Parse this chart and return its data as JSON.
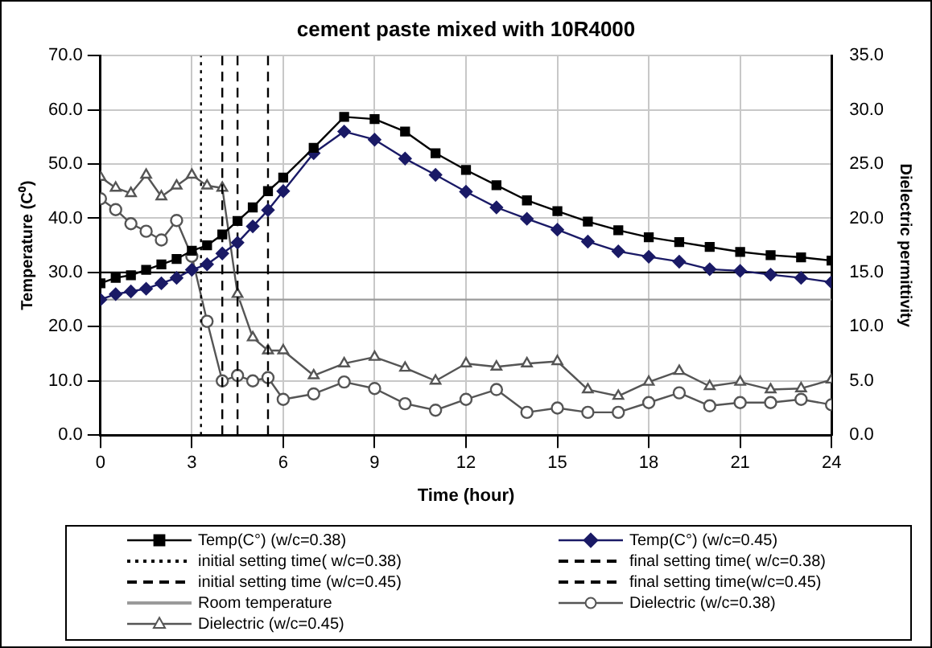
{
  "chart_data": {
    "type": "line",
    "title": "cement paste mixed with 10R4000",
    "xlabel": "Time (hour)",
    "ylabel": "Temperature (C⁰)",
    "y2label": "Dielectric permittivity",
    "xlim": [
      0,
      24
    ],
    "xticks": [
      0,
      3,
      6,
      9,
      12,
      15,
      18,
      21,
      24
    ],
    "ylim": [
      0,
      70
    ],
    "yticks": [
      {
        "value": 0,
        "label": "0.0"
      },
      {
        "value": 10,
        "label": "10.0"
      },
      {
        "value": 20,
        "label": "20.0"
      },
      {
        "value": 30,
        "label": "30.0"
      },
      {
        "value": 40,
        "label": "40.0"
      },
      {
        "value": 50,
        "label": "50.0"
      },
      {
        "value": 60,
        "label": "60.0"
      },
      {
        "value": 70,
        "label": "70.0"
      }
    ],
    "y2lim": [
      0,
      35
    ],
    "y2ticks": [
      {
        "value": 0,
        "label": "0.0"
      },
      {
        "value": 5,
        "label": "5.0"
      },
      {
        "value": 10,
        "label": "10.0"
      },
      {
        "value": 15,
        "label": "15.0"
      },
      {
        "value": 20,
        "label": "20.0"
      },
      {
        "value": 25,
        "label": "25.0"
      },
      {
        "value": 30,
        "label": "30.0"
      },
      {
        "value": 35,
        "label": "35.0"
      }
    ],
    "grid": true,
    "legend": "bottom",
    "ref_lines": [
      {
        "axis": "y",
        "value": 30,
        "color": "#000000"
      }
    ],
    "series": [
      {
        "name": "Temp(C°) (w/c=0.38)",
        "color": "#000000",
        "marker": "square",
        "line_style": "solid",
        "x": [
          0,
          0.5,
          1,
          1.5,
          2,
          2.5,
          3,
          3.5,
          4,
          4.5,
          5,
          5.5,
          6,
          7,
          8,
          9,
          10,
          11,
          12,
          13,
          14,
          15,
          16,
          17,
          18,
          19,
          20,
          21,
          22,
          23,
          24
        ],
        "values": [
          28,
          29,
          29.5,
          30.5,
          31.5,
          32.5,
          34,
          35,
          37,
          39.5,
          42,
          45,
          47.5,
          53,
          58.7,
          58.3,
          56,
          52,
          48.9,
          46.1,
          43.3,
          41.3,
          39.4,
          37.8,
          36.5,
          35.6,
          34.7,
          33.8,
          33.2,
          32.8,
          32.2
        ]
      },
      {
        "name": "Temp(C°) (w/c=0.45)",
        "color": "#1a1a66",
        "marker": "diamond",
        "line_style": "solid",
        "x": [
          0,
          0.5,
          1,
          1.5,
          2,
          2.5,
          3,
          3.5,
          4,
          4.5,
          5,
          5.5,
          6,
          7,
          8,
          9,
          10,
          11,
          12,
          13,
          14,
          15,
          16,
          17,
          18,
          19,
          20,
          21,
          22,
          23,
          24
        ],
        "values": [
          25,
          26,
          26.5,
          27,
          28,
          29,
          30.5,
          31.5,
          33.5,
          35.5,
          38.5,
          41.5,
          45,
          52,
          56,
          54.5,
          51,
          48,
          44.9,
          42,
          39.9,
          37.9,
          35.7,
          33.9,
          32.9,
          32,
          30.6,
          30.3,
          29.6,
          29,
          28.2
        ]
      },
      {
        "name": "initial setting time( w/c=0.38)",
        "color": "#000000",
        "marker": "none",
        "line_style": "dotted",
        "x": [
          3.3,
          3.3
        ],
        "values": [
          0,
          70
        ]
      },
      {
        "name": "final setting time( w/c=0.38)",
        "color": "#000000",
        "marker": "none",
        "line_style": "dashed",
        "x": [
          4,
          4
        ],
        "values": [
          0,
          70
        ]
      },
      {
        "name": "initial setting time (w/c=0.45)",
        "color": "#000000",
        "marker": "none",
        "line_style": "dashed",
        "x": [
          4.5,
          4.5
        ],
        "values": [
          0,
          70
        ]
      },
      {
        "name": "final setting time(w/c=0.45)",
        "color": "#000000",
        "marker": "none",
        "line_style": "dashed",
        "x": [
          5.5,
          5.5
        ],
        "values": [
          0,
          70
        ]
      },
      {
        "name": "Room temperature",
        "color": "#9a9a9a",
        "marker": "none",
        "line_style": "solid",
        "x": [
          0,
          24
        ],
        "values": [
          25,
          25
        ]
      },
      {
        "name": "Dielectric (w/c=0.38)",
        "color": "#555555",
        "marker": "circle",
        "line_style": "solid",
        "axis": "y2",
        "x": [
          0,
          0.5,
          1,
          1.5,
          2,
          2.5,
          3,
          3.5,
          4,
          4.5,
          5,
          5.5,
          6,
          7,
          8,
          9,
          10,
          11,
          12,
          13,
          14,
          15,
          16,
          17,
          18,
          19,
          20,
          21,
          22,
          23,
          24
        ],
        "values": [
          21.8,
          20.8,
          19.5,
          18.8,
          18,
          19.8,
          16.5,
          10.5,
          5,
          5.5,
          5,
          5.3,
          3.3,
          3.8,
          4.9,
          4.3,
          2.9,
          2.3,
          3.3,
          4.2,
          2.1,
          2.5,
          2.1,
          2.1,
          3,
          3.9,
          2.7,
          3,
          3,
          3.3,
          2.8
        ]
      },
      {
        "name": "Dielectric (w/c=0.45)",
        "color": "#555555",
        "marker": "triangle",
        "line_style": "solid",
        "axis": "y2",
        "x": [
          0,
          0.5,
          1,
          1.5,
          2,
          2.5,
          3,
          3.5,
          4,
          4.5,
          5,
          5.5,
          6,
          7,
          8,
          9,
          10,
          11,
          12,
          13,
          14,
          15,
          16,
          17,
          18,
          19,
          20,
          21,
          22,
          23,
          24
        ],
        "values": [
          23.8,
          22.8,
          22.3,
          24,
          22,
          23,
          24,
          23,
          22.8,
          13,
          9,
          7.8,
          7.8,
          5.5,
          6.6,
          7.2,
          6.2,
          5,
          6.6,
          6.3,
          6.6,
          6.8,
          4.2,
          3.6,
          4.9,
          5.9,
          4.5,
          4.9,
          4.2,
          4.3,
          5.1
        ]
      }
    ]
  }
}
